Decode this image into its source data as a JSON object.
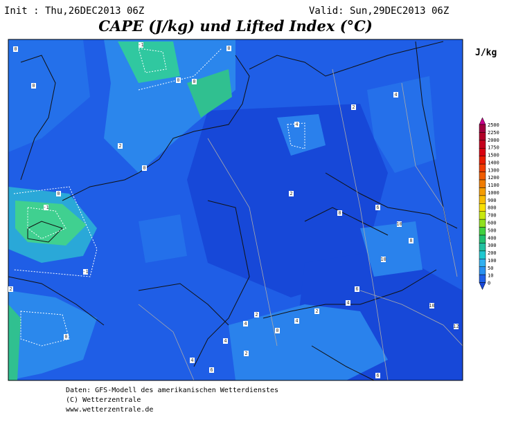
{
  "header": {
    "init": "Init : Thu,26DEC2013 06Z",
    "valid": "Valid: Sun,29DEC2013 06Z",
    "title": "CAPE (J/kg) und Lifted Index (°C)"
  },
  "colorbar": {
    "unit": "J/kg",
    "labels": [
      "2500",
      "2250",
      "2000",
      "1750",
      "1500",
      "1400",
      "1300",
      "1200",
      "1100",
      "1000",
      "900",
      "800",
      "700",
      "600",
      "500",
      "400",
      "300",
      "200",
      "100",
      "50",
      "10",
      "0"
    ],
    "colors": [
      "#c8008c",
      "#a00040",
      "#b00028",
      "#c4001c",
      "#d80010",
      "#e81c00",
      "#f03c00",
      "#f05c00",
      "#f07c00",
      "#f49c00",
      "#f8bc00",
      "#f8e000",
      "#c8e810",
      "#90e020",
      "#40d040",
      "#20c070",
      "#20c0a0",
      "#20c8d0",
      "#30b0f0",
      "#2890f0",
      "#2060e8",
      "#1a48d8"
    ]
  },
  "map": {
    "contour_labels": [
      "0",
      "-1",
      "0",
      "0",
      "0",
      "2",
      "0",
      "-1",
      "0",
      "-1",
      "0",
      "2",
      "0",
      "4",
      "4",
      "2",
      "2",
      "6",
      "8",
      "10",
      "8",
      "10",
      "6",
      "4",
      "2",
      "4",
      "2",
      "0",
      "4",
      "4",
      "6",
      "4",
      "2",
      "10",
      "12",
      "6"
    ]
  },
  "footer": [
    "Daten: GFS-Modell des amerikanischen Wetterdienstes",
    "(C) Wetterzentrale",
    "www.wetterzentrale.de"
  ]
}
